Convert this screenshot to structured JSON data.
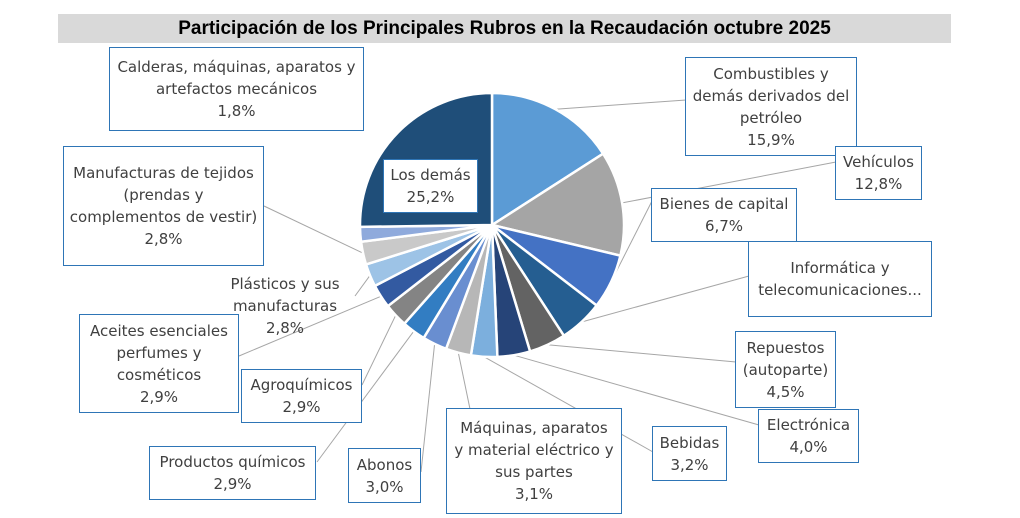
{
  "chart_data": {
    "type": "pie",
    "title": "Participación de los Principales Rubros en la Recaudación octubre 2025",
    "slices": [
      {
        "name": "Combustibles y\ndemás derivados del\npetróleo",
        "value": 15.9,
        "label": "15,9%",
        "color": "#5b9bd5"
      },
      {
        "name": "Vehículos",
        "value": 12.8,
        "label": "12,8%",
        "color": "#a5a5a5"
      },
      {
        "name": "Bienes de capital",
        "value": 6.7,
        "label": "6,7%",
        "color": "#4472c4"
      },
      {
        "name": "Informática y\ntelecomunicaciones...",
        "value": 5.4,
        "label": "",
        "color": "#255e91"
      },
      {
        "name": "Repuestos\n(autoparte)",
        "value": 4.5,
        "label": "4,5%",
        "color": "#636363"
      },
      {
        "name": "Electrónica",
        "value": 4.0,
        "label": "4,0%",
        "color": "#264478"
      },
      {
        "name": "Bebidas",
        "value": 3.2,
        "label": "3,2%",
        "color": "#7cafdd"
      },
      {
        "name": "Máquinas, aparatos\ny material eléctrico y\nsus partes",
        "value": 3.1,
        "label": "3,1%",
        "color": "#b7b7b7"
      },
      {
        "name": "Abonos",
        "value": 3.0,
        "label": "3,0%",
        "color": "#698ed0"
      },
      {
        "name": "Productos químicos",
        "value": 2.9,
        "label": "2,9%",
        "color": "#327dc2"
      },
      {
        "name": "Agroquímicos",
        "value": 2.9,
        "label": "2,9%",
        "color": "#848484"
      },
      {
        "name": "Aceites esenciales\nperfumes y\ncosméticos",
        "value": 2.9,
        "label": "2,9%",
        "color": "#335aa1"
      },
      {
        "name": "Plásticos y sus\nmanufacturas",
        "value": 2.8,
        "label": "2,8%",
        "color": "#9dc3e6"
      },
      {
        "name": "Manufacturas de tejidos\n(prendas y\ncomplementos de vestir)",
        "value": 2.8,
        "label": "2,8%",
        "color": "#c9c9c9"
      },
      {
        "name": "Calderas, máquinas, aparatos y\nartefactos mecánicos",
        "value": 1.8,
        "label": "1,8%",
        "color": "#8faadc"
      },
      {
        "name": "Los demás",
        "value": 25.2,
        "label": "25,2%",
        "color": "#1f4e79"
      }
    ]
  }
}
